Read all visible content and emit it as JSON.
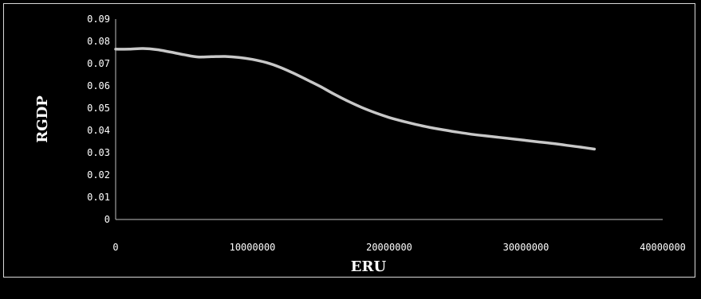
{
  "chart_data": {
    "type": "line",
    "title": "",
    "xlabel": "ERU",
    "ylabel": "RGDP",
    "xlim": [
      0,
      40000000
    ],
    "ylim": [
      0,
      0.09
    ],
    "x_ticks": [
      "0",
      "10000000",
      "20000000",
      "30000000",
      "40000000"
    ],
    "y_ticks": [
      "0",
      "0.01",
      "0.02",
      "0.03",
      "0.04",
      "0.05",
      "0.06",
      "0.07",
      "0.08",
      "0.09"
    ],
    "grid": false,
    "legend": "none",
    "line_color": "#c8c8c8",
    "series": [
      {
        "x": [
          0,
          1000000,
          2000000,
          3000000,
          4000000,
          5000000,
          6000000,
          7000000,
          8000000,
          9000000,
          10000000,
          11000000,
          12000000,
          13000000,
          14000000,
          15000000,
          16000000,
          17000000,
          18000000,
          19000000,
          20000000,
          21000000,
          22000000,
          23000000,
          24000000,
          25000000,
          26000000,
          27000000,
          28000000,
          29000000,
          30000000,
          31000000,
          32000000,
          33000000,
          34000000,
          35000000
        ],
        "values": [
          0.0765,
          0.0765,
          0.0768,
          0.0763,
          0.0752,
          0.074,
          0.073,
          0.0731,
          0.0732,
          0.0728,
          0.0719,
          0.0705,
          0.0684,
          0.0657,
          0.0627,
          0.0596,
          0.0562,
          0.0531,
          0.0503,
          0.0479,
          0.0458,
          0.0441,
          0.0426,
          0.0413,
          0.0402,
          0.0392,
          0.0383,
          0.0376,
          0.0369,
          0.0362,
          0.0355,
          0.0348,
          0.0341,
          0.0333,
          0.0325,
          0.0316
        ]
      }
    ]
  }
}
